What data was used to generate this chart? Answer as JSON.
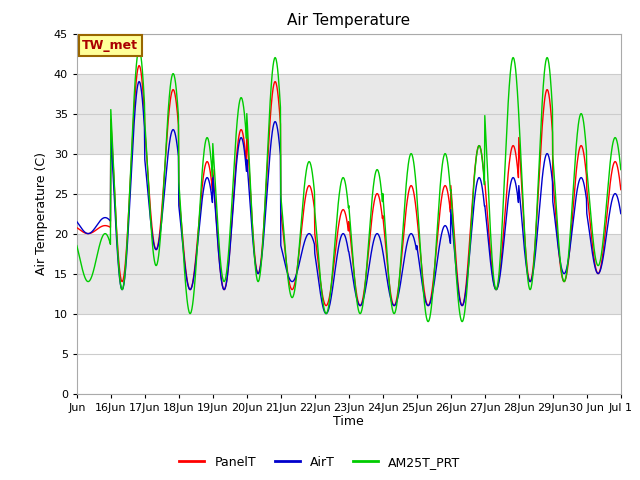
{
  "title": "Air Temperature",
  "xlabel": "Time",
  "ylabel": "Air Temperature (C)",
  "ylim": [
    0,
    45
  ],
  "yticks": [
    0,
    5,
    10,
    15,
    20,
    25,
    30,
    35,
    40,
    45
  ],
  "annotation_text": "TW_met",
  "background_color": "#ffffff",
  "plot_bg_color": "#ffffff",
  "band_colors": [
    "#ffffff",
    "#e8e8e8"
  ],
  "grid_color": "#cccccc",
  "line_colors": {
    "PanelT": "#ff0000",
    "AirT": "#0000cc",
    "AM25T_PRT": "#00cc00"
  },
  "line_width": 1.0,
  "legend_labels": [
    "PanelT",
    "AirT",
    "AM25T_PRT"
  ],
  "x_labels": [
    "Jun",
    "16Jun",
    "17Jun",
    "18Jun",
    "19Jun",
    "20Jun",
    "21Jun",
    "22Jun",
    "23Jun",
    "24Jun",
    "25Jun",
    "26Jun",
    "27Jun",
    "28Jun",
    "29Jun",
    "30 Jun",
    "Jul 1"
  ],
  "day_maxes_panel": [
    21,
    41,
    38,
    29,
    33,
    39,
    26,
    23,
    25,
    26,
    26,
    31,
    31,
    38,
    31,
    29
  ],
  "day_mins_panel": [
    20,
    14,
    18,
    13,
    13,
    15,
    13,
    11,
    11,
    11,
    11,
    11,
    13,
    14,
    14,
    15
  ],
  "day_maxes_air": [
    22,
    39,
    33,
    27,
    32,
    34,
    20,
    20,
    20,
    20,
    21,
    27,
    27,
    30,
    27,
    25
  ],
  "day_mins_air": [
    20,
    13,
    18,
    13,
    13,
    15,
    14,
    10,
    11,
    11,
    11,
    11,
    13,
    14,
    15,
    15
  ],
  "day_maxes_am": [
    20,
    43,
    40,
    32,
    37,
    42,
    29,
    27,
    28,
    30,
    30,
    31,
    42,
    42,
    35,
    32
  ],
  "day_mins_am": [
    14,
    13,
    16,
    10,
    14,
    14,
    12,
    10,
    10,
    10,
    9,
    9,
    13,
    13,
    14,
    16
  ]
}
